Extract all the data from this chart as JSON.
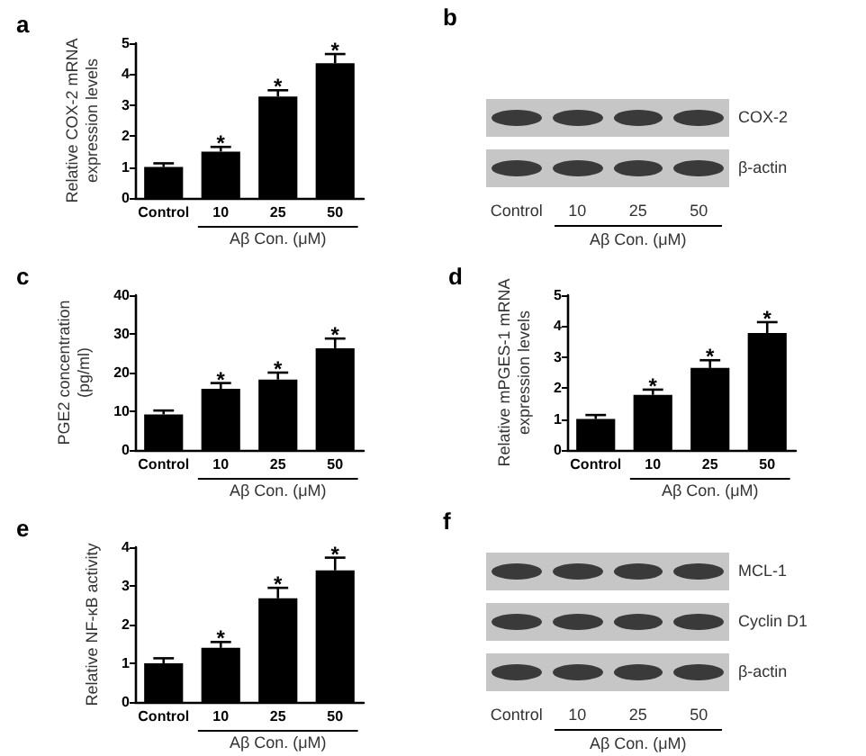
{
  "chart_data": [
    {
      "type": "bar",
      "title": "a",
      "ylabel": "Relative COX-2 mRNA expression levels",
      "xlabel": "Aβ Con. (μM)",
      "categories": [
        "Control",
        "10",
        "25",
        "50"
      ],
      "values": [
        1.0,
        1.5,
        3.28,
        4.35
      ],
      "errors": [
        0.12,
        0.15,
        0.2,
        0.3
      ],
      "color": "#000000",
      "ylim": [
        0,
        5
      ],
      "yticks": [
        0,
        1,
        2,
        3,
        4,
        5
      ],
      "annotations": [
        {
          "text": "*",
          "x": "10",
          "y": 1.65
        },
        {
          "text": "*",
          "x": "25",
          "y": 3.48
        },
        {
          "text": "*",
          "x": "50",
          "y": 4.65
        }
      ]
    },
    {
      "type": "other",
      "title": "b",
      "annotations": [
        "COX-2",
        "β-actin"
      ],
      "categories": [
        "Control",
        "10",
        "25",
        "50"
      ],
      "xlabel": "Aβ Con. (μM)"
    },
    {
      "type": "bar",
      "title": "c",
      "ylabel": "PGE2 concentration (pg/ml)",
      "xlabel": "Aβ Con. (μM)",
      "categories": [
        "Control",
        "10",
        "25",
        "50"
      ],
      "values": [
        9.2,
        15.8,
        18.2,
        26.3
      ],
      "errors": [
        1,
        1.5,
        1.8,
        2.5
      ],
      "color": "#000000",
      "ylim": [
        0,
        40
      ],
      "yticks": [
        0,
        10,
        20,
        30,
        40
      ],
      "annotations": [
        {
          "text": "*",
          "x": "10",
          "y": 17.3
        },
        {
          "text": "*",
          "x": "25",
          "y": 20
        },
        {
          "text": "*",
          "x": "50",
          "y": 28.8
        }
      ]
    },
    {
      "type": "bar",
      "title": "d",
      "ylabel": "Relative mPGES-1 mRNA expression levels",
      "xlabel": "Aβ Con. (μM)",
      "categories": [
        "Control",
        "10",
        "25",
        "50"
      ],
      "values": [
        1.0,
        1.78,
        2.65,
        3.78
      ],
      "errors": [
        0.13,
        0.17,
        0.25,
        0.35
      ],
      "color": "#000000",
      "ylim": [
        0,
        5
      ],
      "yticks": [
        0,
        1,
        2,
        3,
        4,
        5
      ],
      "annotations": [
        {
          "text": "*",
          "x": "10",
          "y": 1.95
        },
        {
          "text": "*",
          "x": "25",
          "y": 2.9
        },
        {
          "text": "*",
          "x": "50",
          "y": 4.13
        }
      ]
    },
    {
      "type": "bar",
      "title": "e",
      "ylabel": "Relative NF-κB activity",
      "xlabel": "Aβ Con. (μM)",
      "categories": [
        "Control",
        "10",
        "25",
        "50"
      ],
      "values": [
        1.0,
        1.4,
        2.68,
        3.4
      ],
      "errors": [
        0.13,
        0.15,
        0.27,
        0.33
      ],
      "color": "#000000",
      "ylim": [
        0,
        4
      ],
      "yticks": [
        0,
        1,
        2,
        3,
        4
      ],
      "annotations": [
        {
          "text": "*",
          "x": "10",
          "y": 1.55
        },
        {
          "text": "*",
          "x": "25",
          "y": 2.95
        },
        {
          "text": "*",
          "x": "50",
          "y": 3.73
        }
      ]
    },
    {
      "type": "other",
      "title": "f",
      "annotations": [
        "MCL-1",
        "Cyclin D1",
        "β-actin"
      ],
      "categories": [
        "Control",
        "10",
        "25",
        "50"
      ],
      "xlabel": "Aβ Con. (μM)"
    }
  ]
}
